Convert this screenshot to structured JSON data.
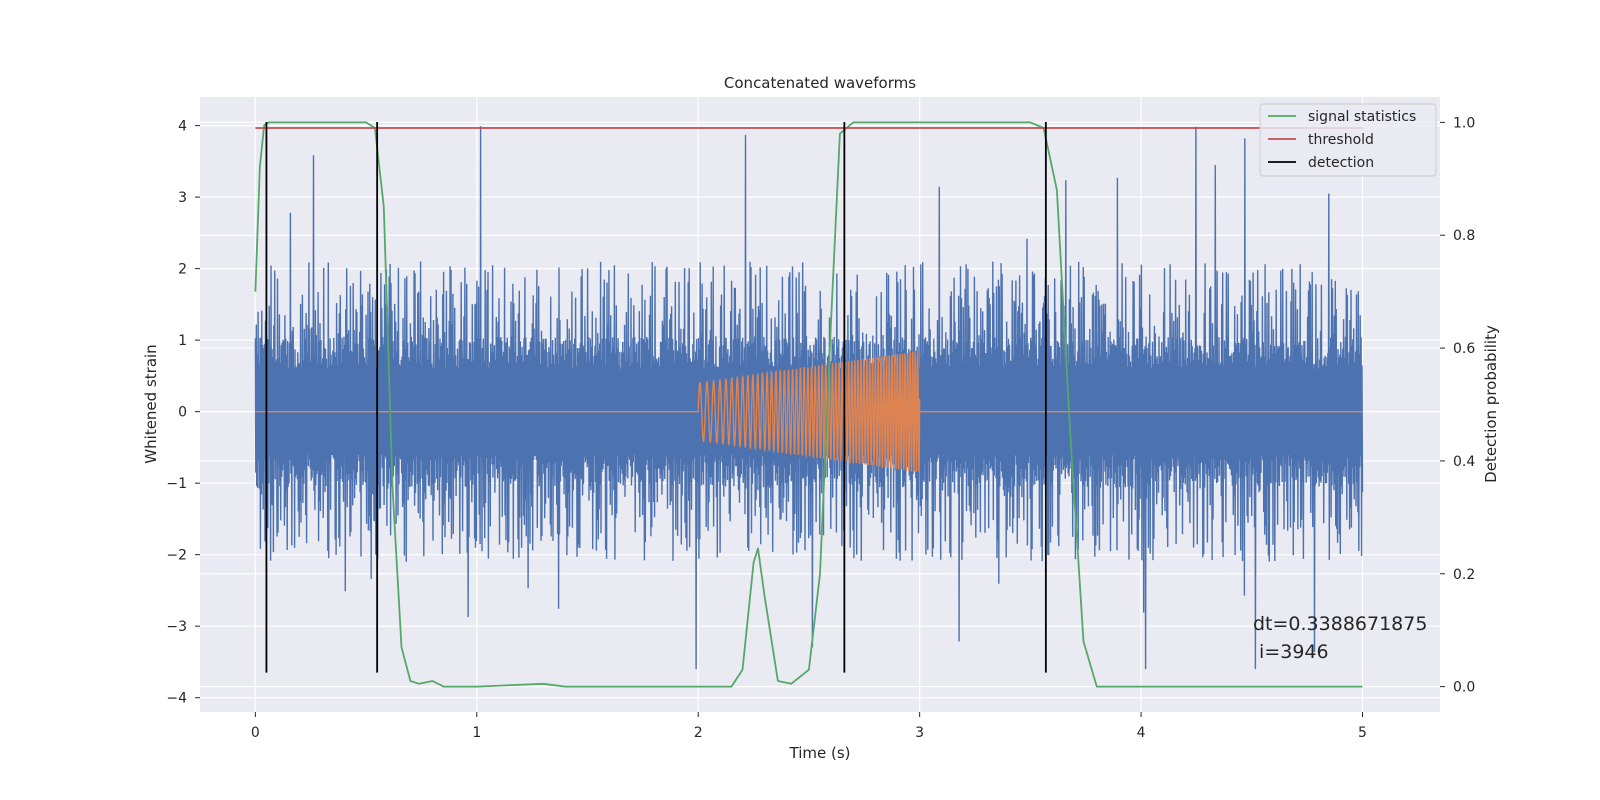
{
  "chart_data": {
    "type": "line",
    "title": "Concatenated waveforms",
    "xlabel": "Time (s)",
    "ylabel": "Whitened strain",
    "y2label": "Detection probability",
    "xlim": [
      -0.25,
      5.35
    ],
    "ylim": [
      -4.2,
      4.4
    ],
    "y2lim": [
      -0.045,
      1.045
    ],
    "xticks": [
      "0",
      "1",
      "2",
      "3",
      "4",
      "5"
    ],
    "yticks": [
      "4",
      "3",
      "2",
      "1",
      "0",
      "−1",
      "−2",
      "−3",
      "−4"
    ],
    "y2ticks": [
      "1.0",
      "0.8",
      "0.6",
      "0.4",
      "0.2",
      "0.0"
    ],
    "grid": true,
    "legend_position": "top-right",
    "colors": {
      "noise": "#4c72b0",
      "waveform": "#dd8452",
      "signal_statistics": "#55a868",
      "threshold": "#c44e52",
      "detection": "#000000",
      "plot_background": "#eaeaf2",
      "grid": "#ffffff"
    },
    "noise_series": {
      "x_range": [
        0,
        5
      ],
      "samples": 2400,
      "band": [
        -0.6,
        0.6
      ],
      "typical_peak": 2.1,
      "max": 4.0,
      "min": -3.6
    },
    "waveform_series": {
      "x_range": [
        2.0,
        3.0
      ],
      "start_amplitude": 0.4,
      "end_amplitude": 0.85,
      "start_frequency_hz": 30,
      "end_frequency_hz": 90,
      "baseline": 0
    },
    "series": [
      {
        "name": "signal statistics",
        "axis": "right",
        "x": [
          0.0,
          0.02,
          0.04,
          0.06,
          0.1,
          0.5,
          0.54,
          0.58,
          0.62,
          0.66,
          0.7,
          0.74,
          0.8,
          0.85,
          1.0,
          1.3,
          1.4,
          2.15,
          2.2,
          2.25,
          2.27,
          2.3,
          2.36,
          2.42,
          2.5,
          2.55,
          2.6,
          2.64,
          2.7,
          3.5,
          3.56,
          3.62,
          3.68,
          3.74,
          3.8,
          5.0
        ],
        "values": [
          0.7,
          0.92,
          0.995,
          1.0,
          1.0,
          1.0,
          0.99,
          0.85,
          0.35,
          0.07,
          0.01,
          0.005,
          0.01,
          0.0,
          0.0,
          0.005,
          0.0,
          0.0,
          0.03,
          0.22,
          0.245,
          0.16,
          0.01,
          0.005,
          0.03,
          0.2,
          0.65,
          0.98,
          1.0,
          1.0,
          0.99,
          0.88,
          0.45,
          0.08,
          0.0,
          0.0
        ]
      },
      {
        "name": "threshold",
        "axis": "right",
        "x": [
          0,
          5
        ],
        "values": [
          0.99,
          0.99
        ]
      }
    ],
    "detections": {
      "name": "detection",
      "x": [
        0.05,
        0.55,
        2.66,
        3.57
      ],
      "y_range": [
        -3.65,
        4.05
      ]
    },
    "annotation": "dt=0.3388671875\n i=3946"
  }
}
